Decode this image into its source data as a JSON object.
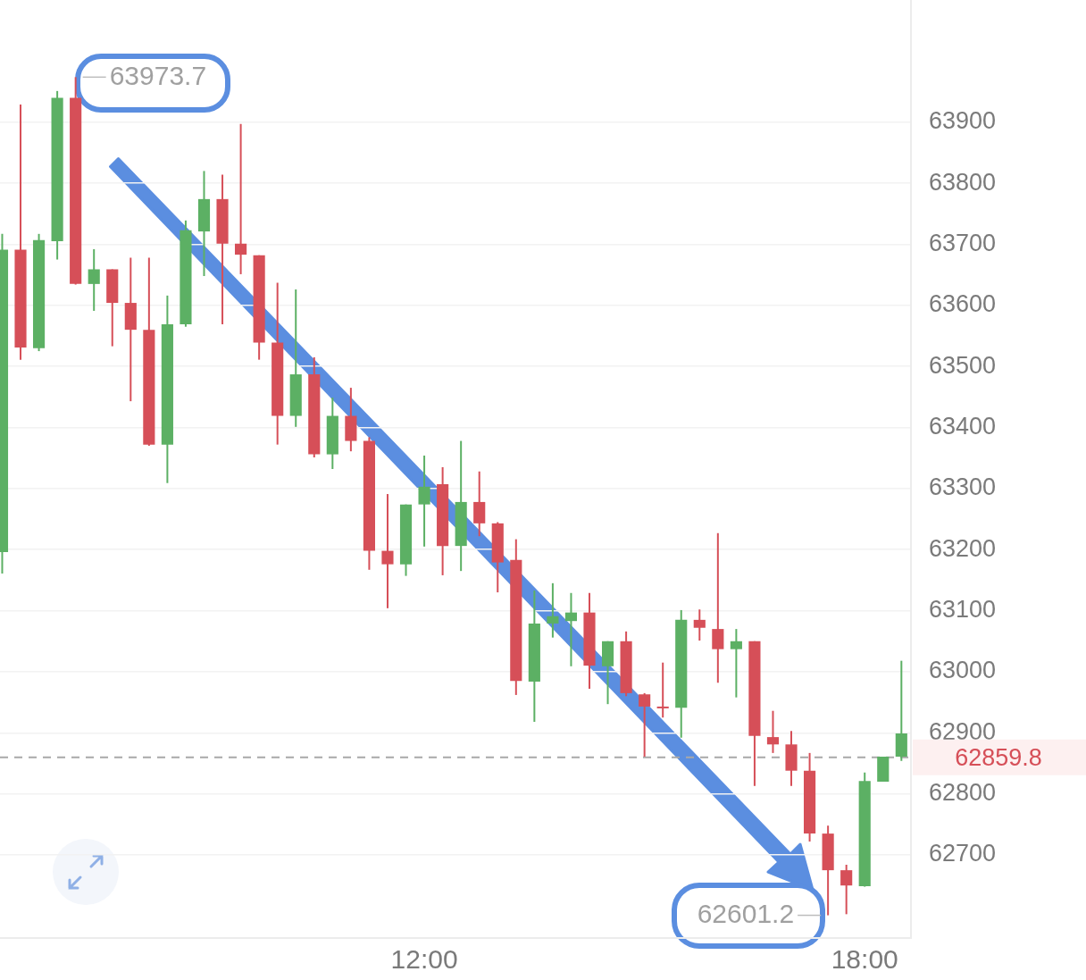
{
  "chart_data": {
    "type": "candlestick",
    "x": [
      6.25,
      6.5,
      6.75,
      7,
      7.25,
      7.5,
      7.75,
      8,
      8.25,
      8.5,
      8.75,
      9,
      9.25,
      9.5,
      9.75,
      10,
      10.25,
      10.5,
      10.75,
      11,
      11.25,
      11.5,
      11.75,
      12,
      12.25,
      12.5,
      12.75,
      13,
      13.25,
      13.5,
      13.75,
      14,
      14.25,
      14.5,
      14.75,
      15,
      15.25,
      15.5,
      15.75,
      16,
      16.25,
      16.5,
      16.75,
      17,
      17.25,
      17.5,
      17.75,
      18,
      18.25,
      18.5
    ],
    "ohlc": [
      [
        63196,
        63717,
        63161,
        63691
      ],
      [
        63691,
        63929,
        63511,
        63531
      ],
      [
        63530,
        63717,
        63525,
        63707
      ],
      [
        63705,
        63951,
        63675,
        63940
      ],
      [
        63940,
        63973.7,
        63634,
        63635
      ],
      [
        63635,
        63692,
        63591,
        63659
      ],
      [
        63659,
        63659,
        63533,
        63604
      ],
      [
        63604,
        63678,
        63443,
        63560
      ],
      [
        63560,
        63678,
        63370,
        63372
      ],
      [
        63372,
        63616,
        63309,
        63569
      ],
      [
        63569,
        63739,
        63565,
        63723
      ],
      [
        63721,
        63820,
        63648,
        63774
      ],
      [
        63774,
        63814,
        63569,
        63701
      ],
      [
        63701,
        63897,
        63651,
        63683
      ],
      [
        63682,
        63682,
        63511,
        63539
      ],
      [
        63539,
        63637,
        63372,
        63419
      ],
      [
        63419,
        63626,
        63401,
        63487
      ],
      [
        63487,
        63515,
        63351,
        63356
      ],
      [
        63356,
        63449,
        63332,
        63419
      ],
      [
        63419,
        63465,
        63361,
        63378
      ],
      [
        63378,
        63384,
        63167,
        63198
      ],
      [
        63198,
        63291,
        63104,
        63176
      ],
      [
        63176,
        63274,
        63157,
        63274
      ],
      [
        63274,
        63354,
        63205,
        63303
      ],
      [
        63307,
        63335,
        63158,
        63206
      ],
      [
        63206,
        63378,
        63165,
        63278
      ],
      [
        63278,
        63328,
        63222,
        63243
      ],
      [
        63243,
        63245,
        63130,
        63179
      ],
      [
        63183,
        63217,
        62962,
        62985
      ],
      [
        62984,
        63133,
        62918,
        63079
      ],
      [
        63079,
        63145,
        63056,
        63091
      ],
      [
        63083,
        63129,
        63009,
        63097
      ],
      [
        63097,
        63129,
        62972,
        63010
      ],
      [
        63009,
        63050,
        62947,
        63050
      ],
      [
        63050,
        63066,
        62960,
        62965
      ],
      [
        62963,
        62965,
        62861,
        62943
      ],
      [
        62943,
        63015,
        62925,
        62942
      ],
      [
        62941,
        63101,
        62892,
        63085
      ],
      [
        63085,
        63102,
        63051,
        63072
      ],
      [
        63070,
        63227,
        62982,
        63037
      ],
      [
        63037,
        63070,
        62958,
        63050
      ],
      [
        63050,
        63050,
        62813,
        62895
      ],
      [
        62893,
        62936,
        62867,
        62881
      ],
      [
        62881,
        62903,
        62813,
        62838
      ],
      [
        62838,
        62867,
        62722,
        62735
      ],
      [
        62735,
        62748,
        62601.2,
        62675
      ],
      [
        62675,
        62684,
        62603,
        62650
      ],
      [
        62649,
        62835,
        62648,
        62821
      ],
      [
        62820,
        62861,
        62820,
        62861
      ],
      [
        62861,
        63018,
        62854,
        62899
      ]
    ],
    "colors": [
      "#5cb064",
      "#d64f58",
      "#5cb064",
      "#5cb064",
      "#d64f58",
      "#5cb064",
      "#d64f58",
      "#d64f58",
      "#d64f58",
      "#5cb064",
      "#5cb064",
      "#5cb064",
      "#d64f58",
      "#d64f58",
      "#d64f58",
      "#d64f58",
      "#5cb064",
      "#d64f58",
      "#5cb064",
      "#d64f58",
      "#d64f58",
      "#d64f58",
      "#5cb064",
      "#5cb064",
      "#d64f58",
      "#5cb064",
      "#d64f58",
      "#d64f58",
      "#d64f58",
      "#5cb064",
      "#5cb064",
      "#5cb064",
      "#d64f58",
      "#5cb064",
      "#d64f58",
      "#d64f58",
      "#d64f58",
      "#5cb064",
      "#d64f58",
      "#d64f58",
      "#5cb064",
      "#d64f58",
      "#d64f58",
      "#d64f58",
      "#d64f58",
      "#d64f58",
      "#d64f58",
      "#5cb064",
      "#5cb064",
      "#5cb064"
    ],
    "xlim": [
      6.22,
      18.63
    ],
    "xticks": [
      {
        "value": 12,
        "label": "12:00"
      },
      {
        "value": 18,
        "label": "18:00"
      }
    ],
    "ylim": [
      62564,
      64100
    ],
    "yticks": [
      62700,
      62800,
      62900,
      63000,
      63100,
      63200,
      63300,
      63400,
      63500,
      63600,
      63700,
      63800,
      63900
    ],
    "grid": "y",
    "ref_lines": [
      {
        "axis": "y",
        "value": 62859.8,
        "label": "62859.8",
        "color": "#a8a8a8",
        "line_style": "dashed"
      }
    ],
    "annotations": [
      {
        "text": "63973.7",
        "x": 7.25,
        "y": 63973.7
      },
      {
        "text": "62601.2",
        "x": 17.5,
        "y": 62601.2
      }
    ]
  }
}
